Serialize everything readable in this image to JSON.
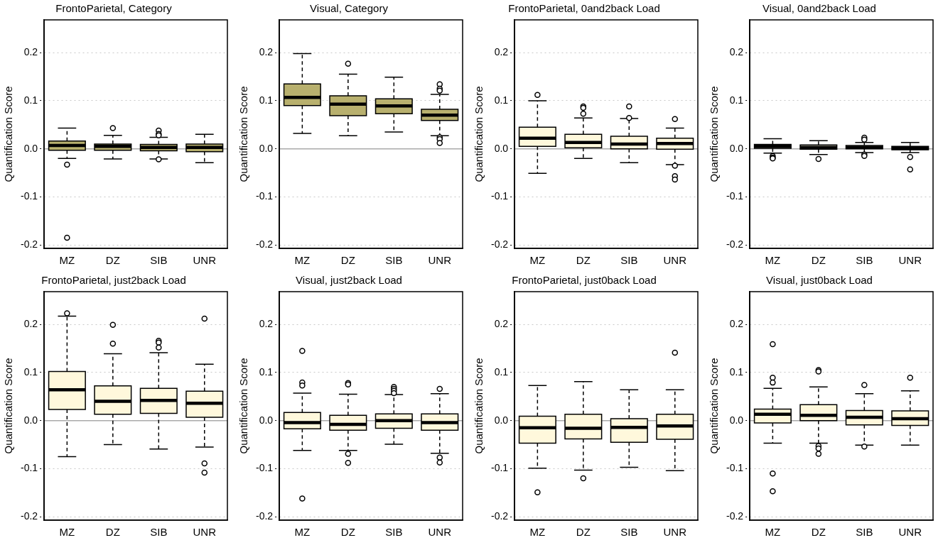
{
  "chart_data": [
    {
      "type": "box",
      "title": "FrontoParietal, Category",
      "ylabel": "Quantification Score",
      "categories": [
        "MZ",
        "DZ",
        "SIB",
        "UNR"
      ],
      "color": "#b8b06e",
      "ylim": [
        -0.207,
        0.268
      ],
      "yticks": [
        {
          "value": -0.2,
          "label": "-0.2"
        },
        {
          "value": -0.1,
          "label": "-0.1"
        },
        {
          "value": 0,
          "label": "0.0"
        },
        {
          "value": 0.1,
          "label": "0.1"
        },
        {
          "value": 0.2,
          "label": "0.2"
        }
      ],
      "grid": "y",
      "ref_lines": [
        {
          "axis": "y",
          "value": 0,
          "color": "#aaaaaa"
        }
      ],
      "boxes": [
        {
          "low": -0.02,
          "q1": -0.003,
          "median": 0.007,
          "q3": 0.016,
          "high": 0.043,
          "outliers": [
            -0.033,
            -0.185
          ]
        },
        {
          "low": -0.021,
          "q1": -0.003,
          "median": 0.005,
          "q3": 0.01,
          "high": 0.028,
          "outliers": [
            0.043
          ]
        },
        {
          "low": -0.021,
          "q1": -0.004,
          "median": 0.003,
          "q3": 0.009,
          "high": 0.024,
          "outliers": [
            0.038,
            0.031,
            0.028,
            -0.022
          ]
        },
        {
          "low": -0.029,
          "q1": -0.006,
          "median": 0.003,
          "q3": 0.01,
          "high": 0.03
        }
      ]
    },
    {
      "type": "box",
      "title": "Visual, Category",
      "ylabel": "Quantification Score",
      "categories": [
        "MZ",
        "DZ",
        "SIB",
        "UNR"
      ],
      "color": "#b8b06e",
      "ylim": [
        -0.207,
        0.268
      ],
      "yticks": [
        {
          "value": -0.2,
          "label": "-0.2"
        },
        {
          "value": -0.1,
          "label": "-0.1"
        },
        {
          "value": 0,
          "label": "0.0"
        },
        {
          "value": 0.1,
          "label": "0.1"
        },
        {
          "value": 0.2,
          "label": "0.2"
        }
      ],
      "grid": "y",
      "ref_lines": [
        {
          "axis": "y",
          "value": 0,
          "color": "#aaaaaa"
        }
      ],
      "boxes": [
        {
          "low": 0.032,
          "q1": 0.09,
          "median": 0.107,
          "q3": 0.135,
          "high": 0.198
        },
        {
          "low": 0.027,
          "q1": 0.069,
          "median": 0.093,
          "q3": 0.11,
          "high": 0.155,
          "outliers": [
            0.177
          ]
        },
        {
          "low": 0.035,
          "q1": 0.073,
          "median": 0.089,
          "q3": 0.104,
          "high": 0.149
        },
        {
          "low": 0.027,
          "q1": 0.059,
          "median": 0.07,
          "q3": 0.082,
          "high": 0.113,
          "outliers": [
            0.134,
            0.125,
            0.121,
            0.024,
            0.02,
            0.012
          ]
        }
      ]
    },
    {
      "type": "box",
      "title": "FrontoParietal, 0and2back Load",
      "ylabel": "Quantification Score",
      "categories": [
        "MZ",
        "DZ",
        "SIB",
        "UNR"
      ],
      "color": "#fff8dc",
      "ylim": [
        -0.207,
        0.268
      ],
      "yticks": [
        {
          "value": -0.2,
          "label": "-0.2"
        },
        {
          "value": -0.1,
          "label": "-0.1"
        },
        {
          "value": 0,
          "label": "0.0"
        },
        {
          "value": 0.1,
          "label": "0.1"
        },
        {
          "value": 0.2,
          "label": "0.2"
        }
      ],
      "grid": "y",
      "ref_lines": [
        {
          "axis": "y",
          "value": 0,
          "color": "#aaaaaa"
        }
      ],
      "boxes": [
        {
          "low": -0.051,
          "q1": 0.005,
          "median": 0.022,
          "q3": 0.045,
          "high": 0.1,
          "outliers": [
            0.112
          ]
        },
        {
          "low": -0.02,
          "q1": 0.002,
          "median": 0.013,
          "q3": 0.03,
          "high": 0.064,
          "outliers": [
            0.088,
            0.085,
            0.073
          ]
        },
        {
          "low": -0.029,
          "q1": 0,
          "median": 0.01,
          "q3": 0.026,
          "high": 0.063,
          "outliers": [
            0.088,
            0.064
          ]
        },
        {
          "low": -0.033,
          "q1": -0.001,
          "median": 0.011,
          "q3": 0.022,
          "high": 0.043,
          "outliers": [
            0.062,
            -0.035,
            -0.057,
            -0.064
          ]
        }
      ]
    },
    {
      "type": "box",
      "title": "Visual, 0and2back Load",
      "ylabel": "Quantification Score",
      "categories": [
        "MZ",
        "DZ",
        "SIB",
        "UNR"
      ],
      "color": "#fff8dc",
      "ylim": [
        -0.207,
        0.268
      ],
      "yticks": [
        {
          "value": -0.2,
          "label": "-0.2"
        },
        {
          "value": -0.1,
          "label": "-0.1"
        },
        {
          "value": 0,
          "label": "0.0"
        },
        {
          "value": 0.1,
          "label": "0.1"
        },
        {
          "value": 0.2,
          "label": "0.2"
        }
      ],
      "grid": "y",
      "ref_lines": [
        {
          "axis": "y",
          "value": 0,
          "color": "#aaaaaa"
        }
      ],
      "boxes": [
        {
          "low": -0.009,
          "q1": 0.001,
          "median": 0.005,
          "q3": 0.009,
          "high": 0.021,
          "outliers": [
            -0.015,
            -0.018,
            -0.02
          ]
        },
        {
          "low": -0.012,
          "q1": -0.001,
          "median": 0.003,
          "q3": 0.008,
          "high": 0.017,
          "outliers": [
            -0.021
          ]
        },
        {
          "low": -0.008,
          "q1": 0,
          "median": 0.003,
          "q3": 0.007,
          "high": 0.013,
          "outliers": [
            0.023,
            0.019,
            -0.012,
            -0.015
          ]
        },
        {
          "low": -0.008,
          "q1": -0.002,
          "median": 0.001,
          "q3": 0.005,
          "high": 0.013,
          "outliers": [
            -0.017,
            -0.043
          ]
        }
      ]
    },
    {
      "type": "box",
      "title": "FrontoParietal, just2back Load",
      "ylabel": "Quantification Score",
      "categories": [
        "MZ",
        "DZ",
        "SIB",
        "UNR"
      ],
      "color": "#fff8dc",
      "ylim": [
        -0.207,
        0.268
      ],
      "yticks": [
        {
          "value": -0.2,
          "label": "-0.2"
        },
        {
          "value": -0.1,
          "label": "-0.1"
        },
        {
          "value": 0,
          "label": "0.0"
        },
        {
          "value": 0.1,
          "label": "0.1"
        },
        {
          "value": 0.2,
          "label": "0.2"
        }
      ],
      "grid": "y",
      "ref_lines": [
        {
          "axis": "y",
          "value": 0,
          "color": "#aaaaaa"
        }
      ],
      "boxes": [
        {
          "low": -0.075,
          "q1": 0.023,
          "median": 0.064,
          "q3": 0.102,
          "high": 0.217,
          "outliers": [
            0.223
          ]
        },
        {
          "low": -0.05,
          "q1": 0.013,
          "median": 0.04,
          "q3": 0.072,
          "high": 0.139,
          "outliers": [
            0.199,
            0.16
          ]
        },
        {
          "low": -0.059,
          "q1": 0.015,
          "median": 0.042,
          "q3": 0.067,
          "high": 0.141,
          "outliers": [
            0.166,
            0.162,
            0.152
          ]
        },
        {
          "low": -0.055,
          "q1": 0.007,
          "median": 0.036,
          "q3": 0.061,
          "high": 0.117,
          "outliers": [
            0.212,
            -0.089,
            -0.108
          ]
        }
      ]
    },
    {
      "type": "box",
      "title": "Visual, just2back Load",
      "ylabel": "Quantification Score",
      "categories": [
        "MZ",
        "DZ",
        "SIB",
        "UNR"
      ],
      "color": "#fff8dc",
      "ylim": [
        -0.207,
        0.268
      ],
      "yticks": [
        {
          "value": -0.2,
          "label": "-0.2"
        },
        {
          "value": -0.1,
          "label": "-0.1"
        },
        {
          "value": 0,
          "label": "0.0"
        },
        {
          "value": 0.1,
          "label": "0.1"
        },
        {
          "value": 0.2,
          "label": "0.2"
        }
      ],
      "grid": "y",
      "ref_lines": [
        {
          "axis": "y",
          "value": 0,
          "color": "#aaaaaa"
        }
      ],
      "boxes": [
        {
          "low": -0.062,
          "q1": -0.017,
          "median": -0.004,
          "q3": 0.017,
          "high": 0.057,
          "outliers": [
            0.145,
            0.079,
            0.073,
            -0.162
          ]
        },
        {
          "low": -0.062,
          "q1": -0.02,
          "median": -0.008,
          "q3": 0.011,
          "high": 0.055,
          "outliers": [
            0.078,
            0.075,
            -0.069,
            -0.088
          ]
        },
        {
          "low": -0.049,
          "q1": -0.016,
          "median": 0,
          "q3": 0.014,
          "high": 0.054,
          "outliers": [
            0.07,
            0.066,
            0.062,
            0.057
          ]
        },
        {
          "low": -0.068,
          "q1": -0.02,
          "median": -0.004,
          "q3": 0.014,
          "high": 0.056,
          "outliers": [
            0.066,
            -0.077,
            -0.087
          ]
        }
      ]
    },
    {
      "type": "box",
      "title": "FrontoParietal, just0back Load",
      "ylabel": "Quantification Score",
      "categories": [
        "MZ",
        "DZ",
        "SIB",
        "UNR"
      ],
      "color": "#fff8dc",
      "ylim": [
        -0.207,
        0.268
      ],
      "yticks": [
        {
          "value": -0.2,
          "label": "-0.2"
        },
        {
          "value": -0.1,
          "label": "-0.1"
        },
        {
          "value": 0,
          "label": "0.0"
        },
        {
          "value": 0.1,
          "label": "0.1"
        },
        {
          "value": 0.2,
          "label": "0.2"
        }
      ],
      "grid": "y",
      "ref_lines": [
        {
          "axis": "y",
          "value": 0,
          "color": "#aaaaaa"
        }
      ],
      "boxes": [
        {
          "low": -0.099,
          "q1": -0.047,
          "median": -0.015,
          "q3": 0.009,
          "high": 0.073,
          "outliers": [
            -0.149
          ]
        },
        {
          "low": -0.103,
          "q1": -0.038,
          "median": -0.016,
          "q3": 0.013,
          "high": 0.081,
          "outliers": [
            -0.12
          ]
        },
        {
          "low": -0.097,
          "q1": -0.045,
          "median": -0.014,
          "q3": 0.004,
          "high": 0.064
        },
        {
          "low": -0.104,
          "q1": -0.039,
          "median": -0.011,
          "q3": 0.013,
          "high": 0.064,
          "outliers": [
            0.141
          ]
        }
      ]
    },
    {
      "type": "box",
      "title": "Visual, just0back Load",
      "ylabel": "Quantification Score",
      "categories": [
        "MZ",
        "DZ",
        "SIB",
        "UNR"
      ],
      "color": "#fff8dc",
      "ylim": [
        -0.207,
        0.268
      ],
      "yticks": [
        {
          "value": -0.2,
          "label": "-0.2"
        },
        {
          "value": -0.1,
          "label": "-0.1"
        },
        {
          "value": 0,
          "label": "0.0"
        },
        {
          "value": 0.1,
          "label": "0.1"
        },
        {
          "value": 0.2,
          "label": "0.2"
        }
      ],
      "grid": "y",
      "ref_lines": [
        {
          "axis": "y",
          "value": 0,
          "color": "#aaaaaa"
        }
      ],
      "boxes": [
        {
          "low": -0.047,
          "q1": -0.005,
          "median": 0.013,
          "q3": 0.024,
          "high": 0.067,
          "outliers": [
            0.159,
            0.089,
            0.079,
            -0.11,
            -0.147
          ]
        },
        {
          "low": -0.047,
          "q1": 0,
          "median": 0.011,
          "q3": 0.033,
          "high": 0.07,
          "outliers": [
            0.105,
            0.102,
            -0.053,
            -0.058,
            -0.069
          ]
        },
        {
          "low": -0.051,
          "q1": -0.009,
          "median": 0.007,
          "q3": 0.021,
          "high": 0.056,
          "outliers": [
            0.074,
            -0.054
          ]
        },
        {
          "low": -0.051,
          "q1": -0.01,
          "median": 0.004,
          "q3": 0.02,
          "high": 0.062,
          "outliers": [
            0.089
          ]
        }
      ]
    }
  ]
}
